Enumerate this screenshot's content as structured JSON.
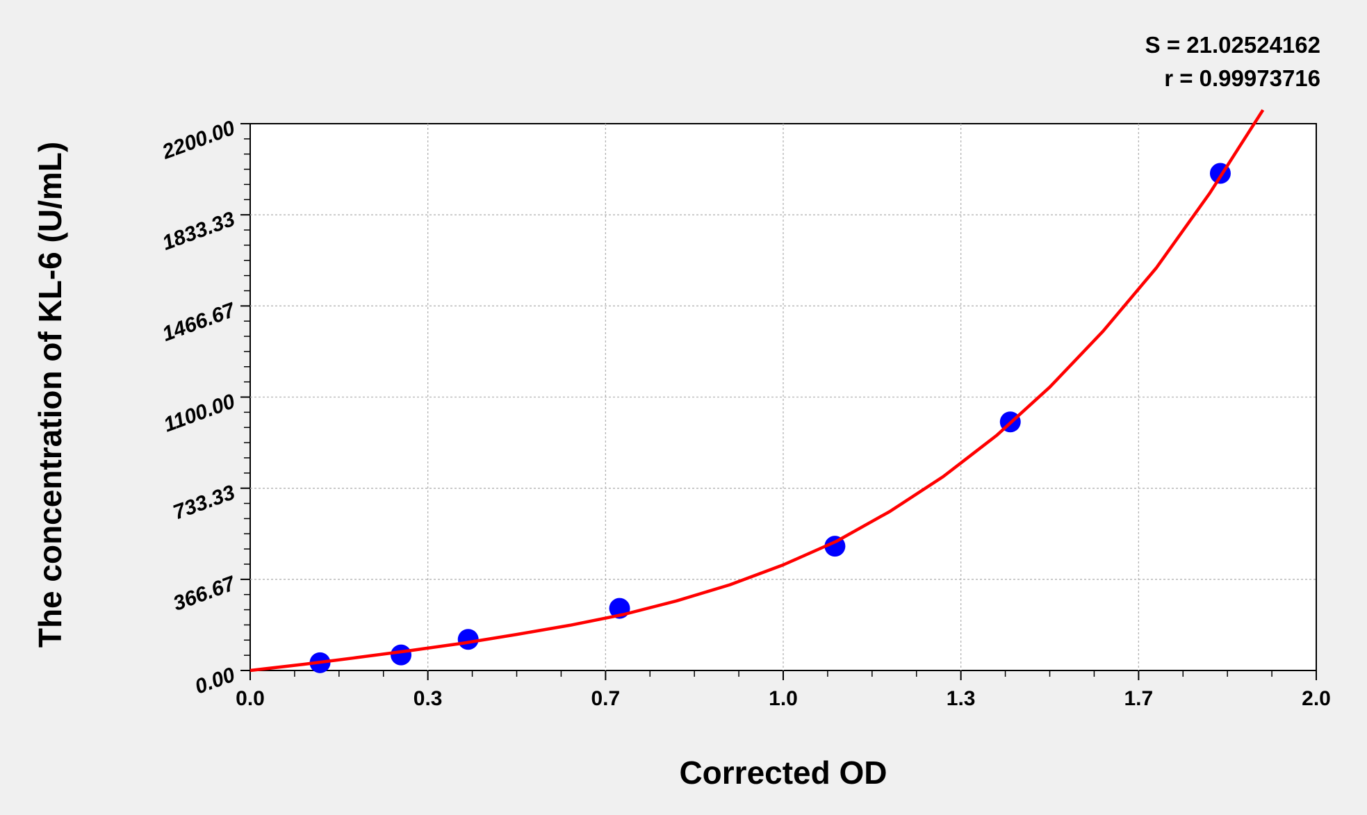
{
  "chart_data": {
    "type": "scatter",
    "xlabel": "Corrected OD",
    "ylabel": "The concentration of KL-6 (U/mL)",
    "xlim": [
      0,
      2.0
    ],
    "ylim": [
      0,
      2200
    ],
    "x_ticks": [
      0,
      0.3333,
      0.6667,
      1.0,
      1.3333,
      1.6667,
      2.0
    ],
    "x_tick_labels": [
      "0.0",
      "0.3",
      "0.7",
      "1.0",
      "1.3",
      "1.7",
      "2.0"
    ],
    "y_ticks": [
      0,
      366.67,
      733.33,
      1100,
      1466.67,
      1833.33,
      2200
    ],
    "y_tick_labels": [
      "0.00",
      "366.67",
      "733.33",
      "1100.00",
      "1466.67",
      "1833.33",
      "2200.00"
    ],
    "grid": true,
    "stats": [
      "S = 21.02524162",
      "r = 0.99973716"
    ],
    "points": {
      "color": "#0000ff",
      "x": [
        0.131,
        0.283,
        0.409,
        0.693,
        1.097,
        1.426,
        1.82
      ],
      "y": [
        31.25,
        62.5,
        125,
        250,
        500,
        1000,
        2000
      ]
    },
    "fit_curve": {
      "color": "#ff0000",
      "x": [
        0,
        0.1,
        0.2,
        0.3,
        0.4,
        0.5,
        0.6,
        0.7,
        0.8,
        0.9,
        1.0,
        1.1,
        1.2,
        1.3,
        1.4,
        1.5,
        1.6,
        1.7,
        1.8,
        1.9
      ],
      "y": [
        0,
        25,
        52,
        80,
        110,
        145,
        182,
        225,
        280,
        345,
        425,
        520,
        640,
        780,
        945,
        1140,
        1365,
        1620,
        1920,
        2255
      ]
    }
  }
}
